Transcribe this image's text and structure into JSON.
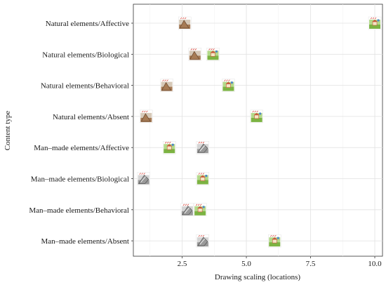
{
  "chart_data": {
    "type": "scatter",
    "xlabel": "Drawing scaling (locations)",
    "ylabel": "Content type",
    "xlim": [
      0.6,
      10.3
    ],
    "x_ticks": [
      {
        "value": 2.5,
        "label": "2.5"
      },
      {
        "value": 5.0,
        "label": "5.0"
      },
      {
        "value": 7.5,
        "label": "7.5"
      },
      {
        "value": 10.0,
        "label": "10.0"
      }
    ],
    "categories": [
      "Natural elements/Affective",
      "Natural elements/Biological",
      "Natural elements/Behavioral",
      "Natural elements/Absent",
      "Man–made elements/Affective",
      "Man–made elements/Biological",
      "Man–made elements/Behavioral",
      "Man–made elements/Absent"
    ],
    "grid": true,
    "marker_kinds": {
      "natural": {
        "ground": "#a67b55",
        "sky": "#d6c9b8",
        "accent": "#6b4a30"
      },
      "manmade": {
        "ground": "#9a9a9a",
        "sky": "#d4d4d4",
        "accent": "#555555"
      },
      "landscape": {
        "ground": "#7cb342",
        "sky": "#b3d98a",
        "accent": "#c85a3a"
      }
    },
    "points": [
      {
        "category": "Natural elements/Affective",
        "x": 2.6,
        "kind": "natural"
      },
      {
        "category": "Natural elements/Affective",
        "x": 10.0,
        "kind": "landscape"
      },
      {
        "category": "Natural elements/Biological",
        "x": 3.0,
        "kind": "natural"
      },
      {
        "category": "Natural elements/Biological",
        "x": 3.7,
        "kind": "landscape"
      },
      {
        "category": "Natural elements/Behavioral",
        "x": 1.9,
        "kind": "natural"
      },
      {
        "category": "Natural elements/Behavioral",
        "x": 4.3,
        "kind": "landscape"
      },
      {
        "category": "Natural elements/Absent",
        "x": 1.1,
        "kind": "natural"
      },
      {
        "category": "Natural elements/Absent",
        "x": 5.4,
        "kind": "landscape"
      },
      {
        "category": "Man–made elements/Affective",
        "x": 2.0,
        "kind": "landscape"
      },
      {
        "category": "Man–made elements/Affective",
        "x": 3.3,
        "kind": "manmade"
      },
      {
        "category": "Man–made elements/Biological",
        "x": 1.0,
        "kind": "manmade"
      },
      {
        "category": "Man–made elements/Biological",
        "x": 3.3,
        "kind": "landscape"
      },
      {
        "category": "Man–made elements/Behavioral",
        "x": 2.7,
        "kind": "manmade"
      },
      {
        "category": "Man–made elements/Behavioral",
        "x": 3.2,
        "kind": "landscape"
      },
      {
        "category": "Man–made elements/Absent",
        "x": 3.3,
        "kind": "manmade"
      },
      {
        "category": "Man–made elements/Absent",
        "x": 6.1,
        "kind": "landscape"
      }
    ]
  }
}
